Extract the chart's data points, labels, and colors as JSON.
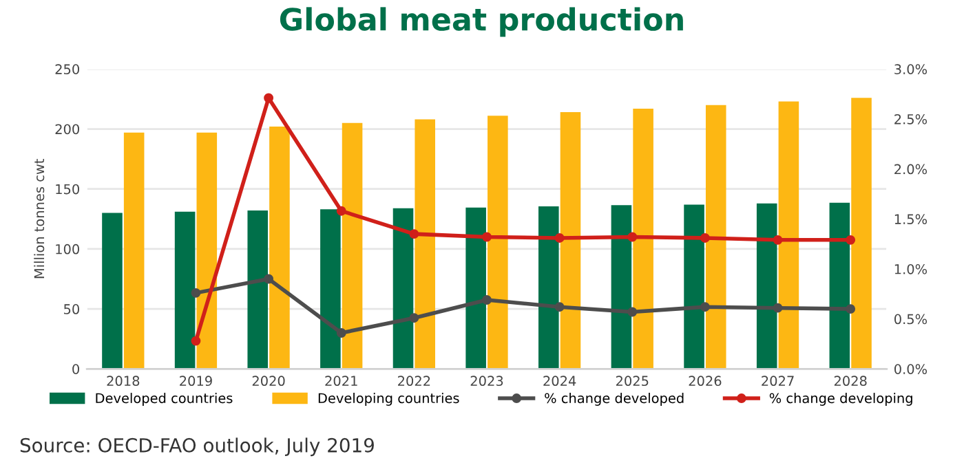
{
  "chart_data": {
    "type": "bar",
    "title": "Global meat production",
    "ylabel": "Million tonnes cwt",
    "categories": [
      "2018",
      "2019",
      "2020",
      "2021",
      "2022",
      "2023",
      "2024",
      "2025",
      "2026",
      "2027",
      "2028"
    ],
    "series": [
      {
        "name": "Developed countries",
        "color": "#00704a",
        "values": [
          130,
          131,
          132,
          133,
          134,
          134.5,
          135.5,
          136.5,
          137,
          138,
          138.5
        ]
      },
      {
        "name": "Developing countries",
        "color": "#fdb713",
        "values": [
          197,
          197,
          202,
          205,
          208,
          211,
          214,
          217,
          220,
          223,
          226
        ]
      },
      {
        "name": "% change developed",
        "type": "line",
        "axis": "y2",
        "color": "#4d4d4d",
        "values": [
          null,
          0.76,
          0.9,
          0.36,
          0.51,
          0.69,
          0.62,
          0.57,
          0.62,
          0.61,
          0.6
        ]
      },
      {
        "name": "% change developing",
        "type": "line",
        "axis": "y2",
        "color": "#d0201a",
        "values": [
          null,
          0.28,
          2.71,
          1.58,
          1.35,
          1.32,
          1.31,
          1.32,
          1.31,
          1.29,
          1.29
        ]
      }
    ],
    "ylim": [
      0,
      250
    ],
    "yticks": [
      0,
      50,
      100,
      150,
      200,
      250
    ],
    "y2lim": [
      0,
      3
    ],
    "y2ticks": [
      {
        "value": 0,
        "label": "0.0%"
      },
      {
        "value": 0.5,
        "label": "0.5%"
      },
      {
        "value": 1,
        "label": "1.0%"
      },
      {
        "value": 1.5,
        "label": "1.5%"
      },
      {
        "value": 2,
        "label": "2.0%"
      },
      {
        "value": 2.5,
        "label": "2.5%"
      },
      {
        "value": 3,
        "label": "3.0%"
      }
    ],
    "grid": "y",
    "legend": "bottom",
    "marker": "circle",
    "annotations": [
      "Source: OECD-FAO outlook, July 2019"
    ]
  }
}
